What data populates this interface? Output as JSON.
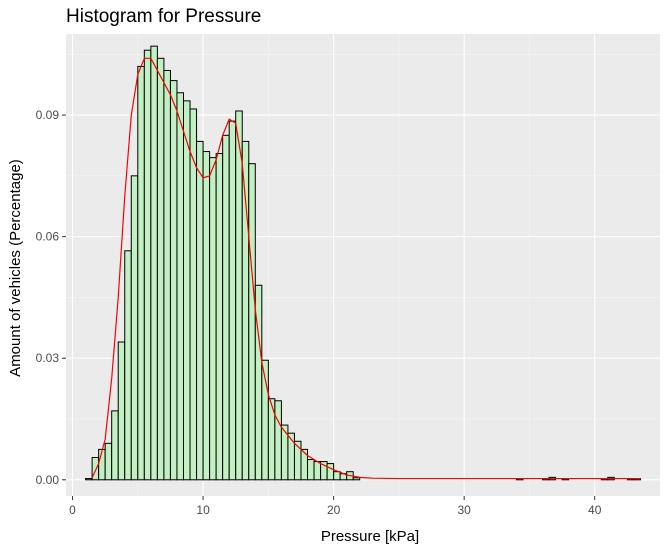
{
  "chart_data": {
    "type": "bar",
    "title": "Histogram for Pressure",
    "xlabel": "Pressure [kPa]",
    "ylabel": "Amount of vehicles (Percentage)",
    "xlim": [
      -0.5,
      45
    ],
    "ylim": [
      -0.004,
      0.11
    ],
    "x_ticks": [
      0,
      10,
      20,
      30,
      40
    ],
    "x_tick_labels": [
      "0",
      "10",
      "20",
      "30",
      "40"
    ],
    "y_ticks": [
      0,
      0.03,
      0.06,
      0.09
    ],
    "y_tick_labels": [
      "0.00",
      "0.03",
      "0.06",
      "0.09"
    ],
    "grid": true,
    "bin_width": 0.5,
    "bins_start": [
      1.0,
      1.5,
      2.0,
      2.5,
      3.0,
      3.5,
      4.0,
      4.5,
      5.0,
      5.5,
      6.0,
      6.5,
      7.0,
      7.5,
      8.0,
      8.5,
      9.0,
      9.5,
      10.0,
      10.5,
      11.0,
      11.5,
      12.0,
      12.5,
      13.0,
      13.5,
      14.0,
      14.5,
      15.0,
      15.5,
      16.0,
      16.5,
      17.0,
      17.5,
      18.0,
      18.5,
      19.0,
      19.5,
      20.0,
      20.5,
      21.0,
      21.5
    ],
    "values": [
      0.0003,
      0.0055,
      0.0075,
      0.009,
      0.017,
      0.034,
      0.0565,
      0.075,
      0.102,
      0.106,
      0.107,
      0.104,
      0.101,
      0.0985,
      0.0955,
      0.0935,
      0.0915,
      0.0835,
      0.081,
      0.0795,
      0.0805,
      0.085,
      0.0885,
      0.091,
      0.0835,
      0.078,
      0.048,
      0.0295,
      0.02,
      0.0195,
      0.0135,
      0.0115,
      0.0095,
      0.0075,
      0.005,
      0.0045,
      0.0045,
      0.004,
      0.002,
      0.0015,
      0.002,
      0.0005
    ],
    "tail_bins_start": [
      34.0,
      36.0,
      36.5,
      37.5,
      40.5,
      41.0,
      42.5,
      43.0
    ],
    "tail_values": [
      0.0003,
      0.0003,
      0.0006,
      0.0003,
      0.0003,
      0.0006,
      0.0003,
      0.0003
    ],
    "density_curve": {
      "x": [
        1.5,
        2.0,
        2.5,
        3.0,
        3.5,
        4.0,
        4.5,
        5.0,
        5.5,
        6.0,
        6.5,
        7.0,
        7.5,
        8.0,
        8.5,
        9.0,
        9.5,
        10.0,
        10.5,
        11.0,
        11.5,
        12.0,
        12.5,
        13.0,
        13.5,
        14.0,
        14.5,
        15.0,
        15.5,
        16.0,
        17.0,
        18.0,
        19.0,
        20.0,
        21.0,
        22.0,
        23.0,
        25.0,
        30.0,
        35.0,
        40.0,
        43.5
      ],
      "y": [
        0.0005,
        0.004,
        0.01,
        0.025,
        0.045,
        0.07,
        0.09,
        0.1,
        0.104,
        0.104,
        0.101,
        0.098,
        0.095,
        0.091,
        0.086,
        0.081,
        0.077,
        0.0745,
        0.075,
        0.079,
        0.085,
        0.089,
        0.088,
        0.078,
        0.06,
        0.042,
        0.029,
        0.021,
        0.016,
        0.013,
        0.009,
        0.006,
        0.004,
        0.0025,
        0.0012,
        0.0006,
        0.0004,
        0.0003,
        0.0003,
        0.0003,
        0.0003,
        0.0003
      ]
    },
    "colors": {
      "panel": "#ebebeb",
      "grid_major": "#ffffff",
      "grid_minor": "#f5f5f5",
      "bar_fill": "#c2f0c2",
      "bar_stroke": "#000000",
      "curve": "#ff0000",
      "tick_text": "#4d4d4d",
      "tick_mark": "#333333"
    }
  }
}
